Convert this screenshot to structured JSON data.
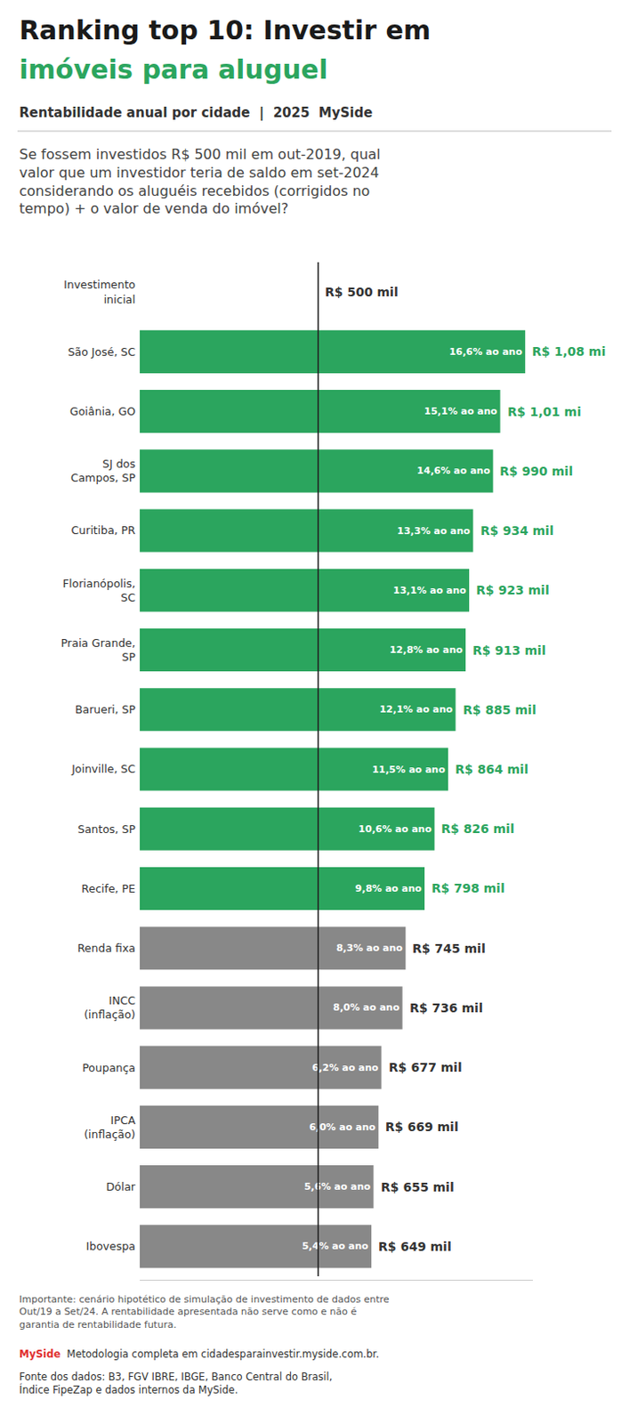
{
  "chart_data": {
    "type": "bar",
    "orientation": "horizontal",
    "title": "Ranking top 10: Investir em\nimóveis para aluguel",
    "title_colors": [
      "#1a1a1a",
      "#2ba55e"
    ],
    "subtitle": "Rentabilidade anual por cidade  |  2025  MySide",
    "question": "Se fossem investidos R$ 500 mil em out-2019, qual\nvalor que um investidor teria de saldo em set-2024\nconsiderando os aluguéis recebidos (corrigidos no\ntempo) + o valor de venda do imóvel?",
    "categories": [
      "Investimento\ninicial",
      "São José, SC",
      "Goiânia, GO",
      "SJ dos\nCampos, SP",
      "Curitiba, PR",
      "Florianópolis,\nSC",
      "Praia Grande,\nSP",
      "Barueri, SP",
      "Joinville, SC",
      "Santos, SP",
      "Recife, PE",
      "Renda fixa",
      "INCC\n(inflação)",
      "Poupança",
      "IPCA\n(inflação)",
      "Dólar",
      "Ibovespa"
    ],
    "values": [
      500,
      1080,
      1010,
      990,
      934,
      923,
      913,
      885,
      864,
      826,
      798,
      745,
      736,
      677,
      669,
      655,
      649
    ],
    "value_labels": [
      "R$ 500 mil",
      "R$ 1,08 mi",
      "R$ 1,01 mi",
      "R$ 990 mil",
      "R$ 934 mil",
      "R$ 923 mil",
      "R$ 913 mil",
      "R$ 885 mil",
      "R$ 864 mil",
      "R$ 826 mil",
      "R$ 798 mil",
      "R$ 745 mil",
      "R$ 736 mil",
      "R$ 677 mil",
      "R$ 669 mil",
      "R$ 655 mil",
      "R$ 649 mil"
    ],
    "rate_labels": [
      null,
      "16,6% ao ano",
      "15,1% ao ano",
      "14,6% ao ano",
      "13,3% ao ano",
      "13,1% ao ano",
      "12,8% ao ano",
      "12,1% ao ano",
      "11,5% ao ano",
      "10,6% ao ano",
      "9,8% ao ano",
      "8,3% ao ano",
      "8,0% ao ano",
      "6,2% ao ano",
      "6,0% ao ano",
      "5,6% ao ano",
      "5,4% ao ano"
    ],
    "colors": [
      "#ffffff",
      "#2ba55e",
      "#2ba55e",
      "#2ba55e",
      "#2ba55e",
      "#2ba55e",
      "#2ba55e",
      "#2ba55e",
      "#2ba55e",
      "#2ba55e",
      "#2ba55e",
      "#888888",
      "#888888",
      "#888888",
      "#888888",
      "#888888",
      "#888888"
    ],
    "value_label_colors": [
      "#333333",
      "#2ba55e",
      "#2ba55e",
      "#2ba55e",
      "#2ba55e",
      "#2ba55e",
      "#2ba55e",
      "#2ba55e",
      "#2ba55e",
      "#2ba55e",
      "#2ba55e",
      "#333333",
      "#333333",
      "#333333",
      "#333333",
      "#333333",
      "#333333"
    ],
    "reference_line": 500,
    "xlim": [
      0,
      1101.6
    ],
    "data_labels": true,
    "tick_labels": "y",
    "grid": false,
    "footnote": "Importante: cenário hipotético de simulação de investimento de dados entre\nOut/19 a Set/24. A rentabilidade apresentada não serve como e não é\ngarantia de rentabilidade futura.",
    "source_brand": "MySide",
    "source_text": "Metodologia completa em cidadesparainvestir.myside.com.br.",
    "source_note": "Fonte dos dados: B3, FGV IBRE, IBGE, Banco Central do Brasil,\nÍndice FipeZap e dados internos da MySide."
  }
}
